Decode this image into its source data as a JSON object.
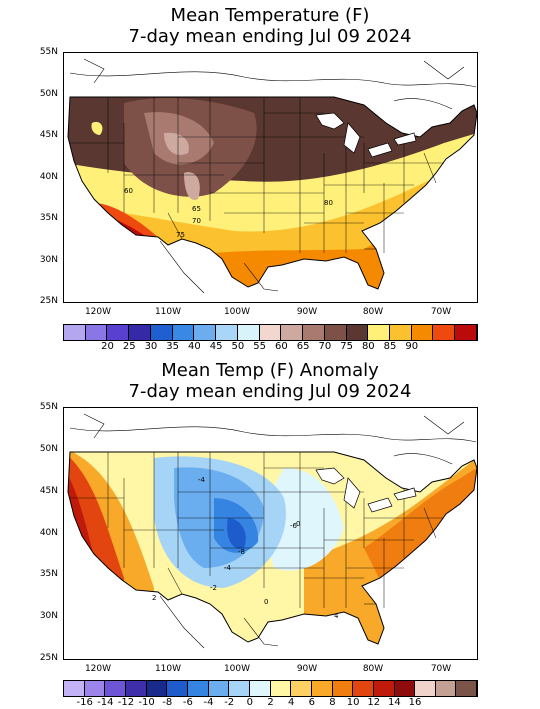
{
  "top": {
    "title_line1": "Mean Temperature (F)",
    "title_line2": "7-day mean ending Jul 09 2024",
    "lat_labels": [
      "55N",
      "50N",
      "45N",
      "40N",
      "35N",
      "30N",
      "25N"
    ],
    "lon_labels": [
      "120W",
      "110W",
      "100W",
      "90W",
      "80W",
      "70W"
    ],
    "contour_labels": [
      "60",
      "65",
      "70",
      "75",
      "80"
    ],
    "colorbar_labels": [
      "20",
      "25",
      "30",
      "35",
      "40",
      "45",
      "50",
      "55",
      "60",
      "65",
      "70",
      "75",
      "80",
      "85",
      "90"
    ],
    "colorbar_colors": [
      "#b4a7f0",
      "#8b76e6",
      "#5a40d0",
      "#3529a8",
      "#1f5fcf",
      "#3a88e6",
      "#6cadf0",
      "#a9d6f6",
      "#d8f3fa",
      "#f1d7cf",
      "#cda9a0",
      "#a87a70",
      "#7e5148",
      "#5a3730",
      "#fff07a",
      "#fbc12e",
      "#f58a00",
      "#ee4a10",
      "#bb0a0a"
    ]
  },
  "bottom": {
    "title_line1": "Mean Temp (F) Anomaly",
    "title_line2": "7-day mean ending Jul 09 2024",
    "lat_labels": [
      "55N",
      "50N",
      "45N",
      "40N",
      "35N",
      "30N",
      "25N"
    ],
    "lon_labels": [
      "120W",
      "110W",
      "100W",
      "90W",
      "80W",
      "70W"
    ],
    "contour_labels": [
      "-4",
      "-6",
      "-8",
      "-4",
      "-2",
      "0",
      "0",
      "2",
      "4"
    ],
    "colorbar_labels": [
      "-16",
      "-14",
      "-12",
      "-10",
      "-8",
      "-6",
      "-4",
      "-2",
      "0",
      "2",
      "4",
      "6",
      "8",
      "10",
      "12",
      "14",
      "16"
    ],
    "colorbar_colors": [
      "#c3b2f6",
      "#9c84ea",
      "#6d55d6",
      "#3e2eaa",
      "#1a2a8c",
      "#1e5ccc",
      "#3584e2",
      "#6aaeef",
      "#a6d4f6",
      "#e0f6fd",
      "#fff6a6",
      "#fcd062",
      "#f8a92a",
      "#f07d10",
      "#e2450f",
      "#c01a0a",
      "#8e0c0c",
      "#f0d4cc",
      "#c4a094",
      "#7a5448"
    ]
  }
}
